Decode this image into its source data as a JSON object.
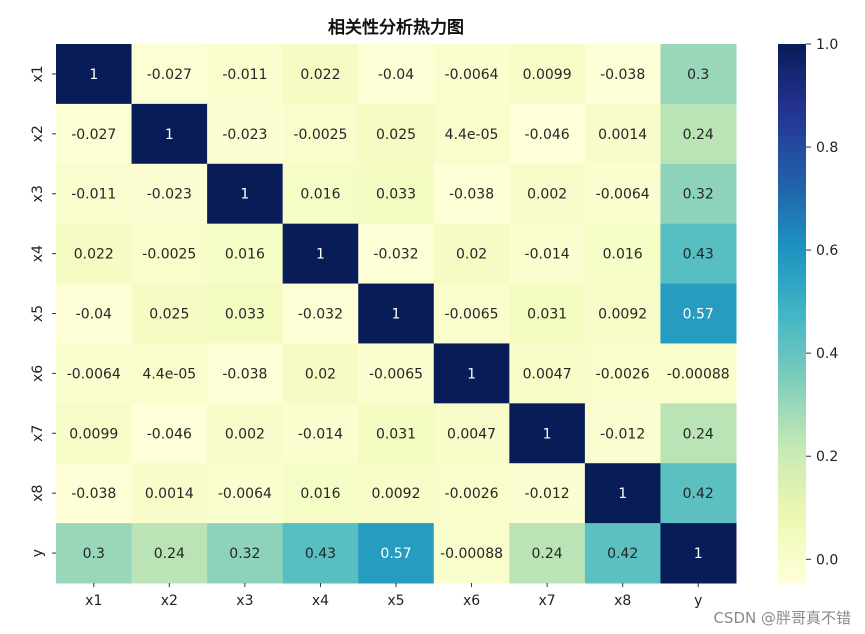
{
  "chart_data": {
    "type": "heatmap",
    "title": "相关性分析热力图",
    "x_labels": [
      "x1",
      "x2",
      "x3",
      "x4",
      "x5",
      "x6",
      "x7",
      "x8",
      "y"
    ],
    "y_labels": [
      "x1",
      "x2",
      "x3",
      "x4",
      "x5",
      "x6",
      "x7",
      "x8",
      "y"
    ],
    "values": [
      [
        1,
        -0.027,
        -0.011,
        0.022,
        -0.04,
        -0.0064,
        0.0099,
        -0.038,
        0.3
      ],
      [
        -0.027,
        1,
        -0.023,
        -0.0025,
        0.025,
        4.4e-05,
        -0.046,
        0.0014,
        0.24
      ],
      [
        -0.011,
        -0.023,
        1,
        0.016,
        0.033,
        -0.038,
        0.002,
        -0.0064,
        0.32
      ],
      [
        0.022,
        -0.0025,
        0.016,
        1,
        -0.032,
        0.02,
        -0.014,
        0.016,
        0.43
      ],
      [
        -0.04,
        0.025,
        0.033,
        -0.032,
        1,
        -0.0065,
        0.031,
        0.0092,
        0.57
      ],
      [
        -0.0064,
        4.4e-05,
        -0.038,
        0.02,
        -0.0065,
        1,
        0.0047,
        -0.0026,
        -0.00088
      ],
      [
        0.0099,
        -0.046,
        0.002,
        -0.014,
        0.031,
        0.0047,
        1,
        -0.012,
        0.24
      ],
      [
        -0.038,
        0.0014,
        -0.0064,
        0.016,
        0.0092,
        -0.0026,
        -0.012,
        1,
        0.42
      ],
      [
        0.3,
        0.24,
        0.32,
        0.43,
        0.57,
        -0.00088,
        0.24,
        0.42,
        1
      ]
    ],
    "annotations": [
      [
        "1",
        "-0.027",
        "-0.011",
        "0.022",
        "-0.04",
        "-0.0064",
        "0.0099",
        "-0.038",
        "0.3"
      ],
      [
        "-0.027",
        "1",
        "-0.023",
        "-0.0025",
        "0.025",
        "4.4e-05",
        "-0.046",
        "0.0014",
        "0.24"
      ],
      [
        "-0.011",
        "-0.023",
        "1",
        "0.016",
        "0.033",
        "-0.038",
        "0.002",
        "-0.0064",
        "0.32"
      ],
      [
        "0.022",
        "-0.0025",
        "0.016",
        "1",
        "-0.032",
        "0.02",
        "-0.014",
        "0.016",
        "0.43"
      ],
      [
        "-0.04",
        "0.025",
        "0.033",
        "-0.032",
        "1",
        "-0.0065",
        "0.031",
        "0.0092",
        "0.57"
      ],
      [
        "-0.0064",
        "4.4e-05",
        "-0.038",
        "0.02",
        "-0.0065",
        "1",
        "0.0047",
        "-0.0026",
        "-0.00088"
      ],
      [
        "0.0099",
        "-0.046",
        "0.002",
        "-0.014",
        "0.031",
        "0.0047",
        "1",
        "-0.012",
        "0.24"
      ],
      [
        "-0.038",
        "0.0014",
        "-0.0064",
        "0.016",
        "0.0092",
        "-0.0026",
        "-0.012",
        "1",
        "0.42"
      ],
      [
        "0.3",
        "0.24",
        "0.32",
        "0.43",
        "0.57",
        "-0.00088",
        "0.24",
        "0.42",
        "1"
      ]
    ],
    "colorbar": {
      "colormap": "YlGnBu",
      "range": [
        -0.046,
        1
      ],
      "ticks": [
        0.0,
        0.2,
        0.4,
        0.6,
        0.8,
        1.0
      ],
      "tick_labels": [
        "0.0",
        "0.2",
        "0.4",
        "0.6",
        "0.8",
        "1.0"
      ]
    },
    "xlabel": "",
    "ylabel": ""
  },
  "watermark": "CSDN @胖哥真不错"
}
